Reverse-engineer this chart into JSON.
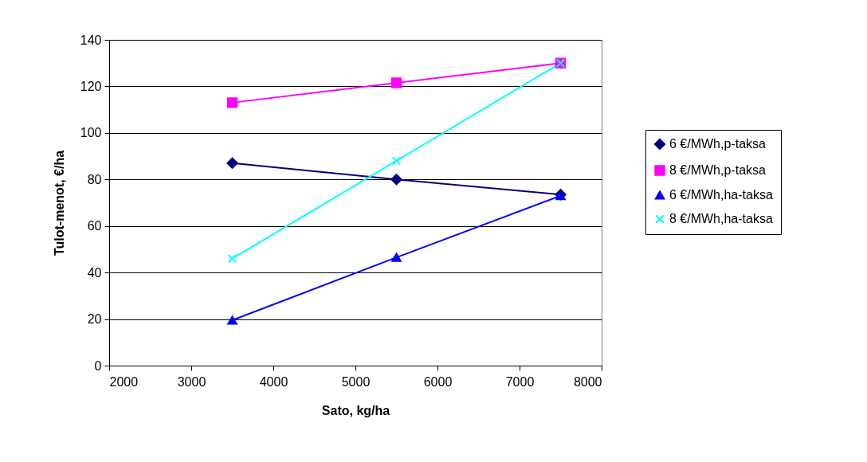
{
  "chart_data": {
    "type": "line",
    "xlabel": "Sato, kg/ha",
    "ylabel": "Tulot-menot, €/ha",
    "x": [
      3500,
      5500,
      7500
    ],
    "series": [
      {
        "name": "6 €/MWh,p-taksa",
        "color": "#000080",
        "marker": "diamond",
        "values": [
          87,
          80,
          73.5
        ]
      },
      {
        "name": "8 €/MWh,p-taksa",
        "color": "#ff00ff",
        "marker": "square",
        "values": [
          113,
          121.5,
          130
        ]
      },
      {
        "name": "6 €/MWh,ha-taksa",
        "color": "#0000ff",
        "marker": "triangle",
        "values": [
          19.5,
          46.5,
          73
        ]
      },
      {
        "name": "8 €/MWh,ha-taksa",
        "color": "#00ffff",
        "marker": "cross",
        "values": [
          46,
          88,
          130
        ]
      }
    ],
    "xlim": [
      2000,
      8000
    ],
    "xticks": [
      2000,
      3000,
      4000,
      5000,
      6000,
      7000,
      8000
    ],
    "ylim": [
      0,
      140
    ],
    "yticks": [
      0,
      20,
      40,
      60,
      80,
      100,
      120,
      140
    ],
    "grid": "y",
    "legend": "right",
    "line_style": "solid"
  }
}
